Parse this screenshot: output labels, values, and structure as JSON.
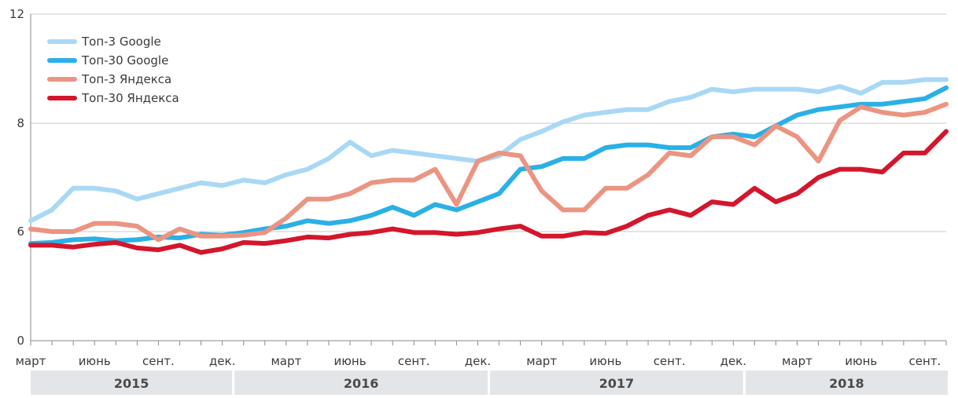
{
  "chart_data": {
    "type": "line",
    "x": [
      "2015-03",
      "2015-04",
      "2015-05",
      "2015-06",
      "2015-07",
      "2015-08",
      "2015-09",
      "2015-10",
      "2015-11",
      "2015-12",
      "2016-01",
      "2016-02",
      "2016-03",
      "2016-04",
      "2016-05",
      "2016-06",
      "2016-07",
      "2016-08",
      "2016-09",
      "2016-10",
      "2016-11",
      "2016-12",
      "2017-01",
      "2017-02",
      "2017-03",
      "2017-04",
      "2017-05",
      "2017-06",
      "2017-07",
      "2017-08",
      "2017-09",
      "2017-10",
      "2017-11",
      "2017-12",
      "2018-01",
      "2018-02",
      "2018-03",
      "2018-04",
      "2018-05",
      "2018-06",
      "2018-07",
      "2018-08",
      "2018-09",
      "2018-10"
    ],
    "yticks": [
      0,
      6,
      8,
      12
    ],
    "ylim": [
      0,
      12
    ],
    "xtick_labels": [
      "март",
      "июнь",
      "сент.",
      "дек.",
      "март",
      "июнь",
      "сент.",
      "дек.",
      "март",
      "июнь",
      "сент.",
      "дек.",
      "март",
      "июнь",
      "сент."
    ],
    "years": [
      "2015",
      "2016",
      "2017",
      "2018"
    ],
    "grid": true,
    "legend": "top-left",
    "series": [
      {
        "name": "Топ-3 Google",
        "color": "#a9d8f5",
        "values": [
          6.2,
          6.4,
          6.8,
          6.8,
          6.75,
          6.6,
          6.7,
          6.8,
          6.9,
          6.85,
          6.95,
          6.9,
          7.05,
          7.15,
          7.35,
          7.65,
          7.4,
          7.5,
          7.45,
          7.4,
          7.35,
          7.3,
          7.4,
          7.7,
          7.85,
          8.05,
          8.3,
          8.4,
          8.5,
          8.5,
          8.8,
          8.95,
          9.25,
          9.15,
          9.25,
          9.25,
          9.25,
          9.15,
          9.35,
          9.1,
          9.5,
          9.5,
          9.6,
          9.6
        ]
      },
      {
        "name": "Топ-30 Google",
        "color": "#2ab0e6",
        "values": [
          5.35,
          5.4,
          5.55,
          5.6,
          5.5,
          5.55,
          5.7,
          5.65,
          5.85,
          5.8,
          5.95,
          6.05,
          6.1,
          6.2,
          6.15,
          6.2,
          6.3,
          6.45,
          6.3,
          6.5,
          6.4,
          6.55,
          6.7,
          7.15,
          7.2,
          7.35,
          7.35,
          7.55,
          7.6,
          7.6,
          7.55,
          7.55,
          7.75,
          7.8,
          7.75,
          7.95,
          8.3,
          8.5,
          8.6,
          8.7,
          8.7,
          8.8,
          8.9,
          9.3
        ]
      },
      {
        "name": "Топ-3 Яндекса",
        "color": "#eb9482",
        "values": [
          6.05,
          6.0,
          6.0,
          6.15,
          6.15,
          6.1,
          5.55,
          6.05,
          5.75,
          5.75,
          5.8,
          5.95,
          6.25,
          6.6,
          6.6,
          6.7,
          6.9,
          6.95,
          6.95,
          7.15,
          6.5,
          7.3,
          7.45,
          7.4,
          6.75,
          6.4,
          6.4,
          6.8,
          6.8,
          7.05,
          7.45,
          7.4,
          7.75,
          7.75,
          7.6,
          7.95,
          7.75,
          7.3,
          8.1,
          8.6,
          8.4,
          8.3,
          8.4,
          8.7
        ]
      },
      {
        "name": "Топ-30 Яндекса",
        "color": "#d4162c",
        "values": [
          5.25,
          5.25,
          5.15,
          5.3,
          5.4,
          5.1,
          5.0,
          5.25,
          4.85,
          5.05,
          5.4,
          5.35,
          5.5,
          5.7,
          5.65,
          5.85,
          5.95,
          6.05,
          5.95,
          5.95,
          5.85,
          5.95,
          6.05,
          6.1,
          5.75,
          5.75,
          5.95,
          5.9,
          6.1,
          6.3,
          6.4,
          6.3,
          6.55,
          6.5,
          6.8,
          6.55,
          6.7,
          7.0,
          7.15,
          7.15,
          7.1,
          7.45,
          7.45,
          7.85
        ]
      }
    ]
  }
}
